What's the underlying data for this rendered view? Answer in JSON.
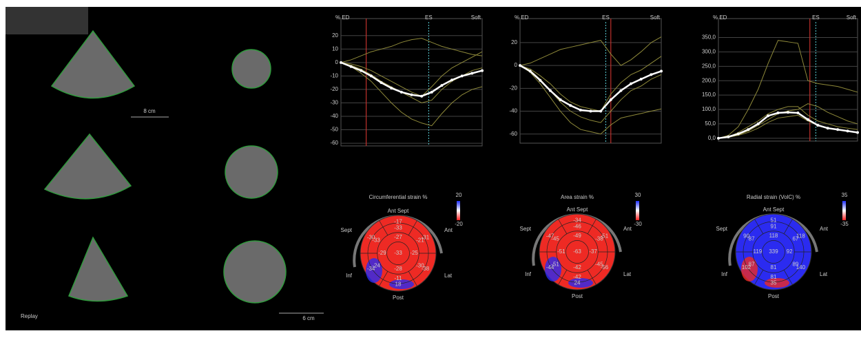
{
  "echo": {
    "scale_top": "8 cm",
    "scale_bottom": "6 cm",
    "replay": "Replay"
  },
  "chart_data": [
    {
      "type": "line",
      "y_label": "% ED",
      "marker_label": "ES",
      "mode_label": "Soft",
      "xlim": [
        0,
        14
      ],
      "x": [
        0,
        1,
        2,
        3,
        4,
        5,
        6,
        7,
        8,
        9,
        10,
        11,
        12,
        13,
        14
      ],
      "ylim": [
        -62,
        25
      ],
      "yticks": [
        20,
        10,
        0,
        -10,
        -20,
        -30,
        -40,
        -50,
        -60
      ],
      "ed_x": 2.5,
      "es_x": 8.7,
      "series": [
        {
          "color": "#8f8a3a",
          "values": [
            0,
            -2,
            -5,
            -9,
            -14,
            -18,
            -22,
            -26,
            -30,
            -28,
            -20,
            -14,
            -10,
            -6,
            -4
          ]
        },
        {
          "color": "#8f8a3a",
          "values": [
            0,
            -1,
            -3,
            -6,
            -10,
            -14,
            -18,
            -22,
            -25,
            -18,
            -10,
            -4,
            0,
            4,
            8
          ]
        },
        {
          "color": "#8f8a3a",
          "values": [
            0,
            -3,
            -8,
            -14,
            -22,
            -30,
            -37,
            -42,
            -45,
            -47,
            -38,
            -30,
            -24,
            -20,
            -18
          ]
        },
        {
          "color": "#8f8a3a",
          "values": [
            0,
            2,
            5,
            8,
            10,
            12,
            15,
            17,
            18,
            15,
            12,
            10,
            8,
            6,
            5
          ]
        },
        {
          "color": "#ffffff",
          "values": [
            0,
            -3,
            -6,
            -10,
            -15,
            -19,
            -22,
            -24,
            -25,
            -22,
            -17,
            -13,
            -10,
            -8,
            -6
          ]
        }
      ]
    },
    {
      "type": "line",
      "y_label": "% ED",
      "marker_label": "ES",
      "mode_label": "Soft",
      "xlim": [
        0,
        14
      ],
      "x": [
        0,
        1,
        2,
        3,
        4,
        5,
        6,
        7,
        8,
        9,
        10,
        11,
        12,
        13,
        14
      ],
      "ylim": [
        -68,
        32
      ],
      "yticks": [
        20,
        0,
        -20,
        -40,
        -60
      ],
      "ed_x": 9,
      "es_x": 8.5,
      "series": [
        {
          "color": "#8f8a3a",
          "values": [
            0,
            -4,
            -12,
            -22,
            -32,
            -40,
            -45,
            -48,
            -50,
            -40,
            -30,
            -22,
            -18,
            -12,
            -8
          ]
        },
        {
          "color": "#8f8a3a",
          "values": [
            0,
            2,
            6,
            10,
            14,
            16,
            18,
            20,
            22,
            10,
            0,
            5,
            12,
            20,
            25
          ]
        },
        {
          "color": "#8f8a3a",
          "values": [
            0,
            -6,
            -16,
            -28,
            -40,
            -50,
            -56,
            -58,
            -60,
            -52,
            -46,
            -44,
            -42,
            -40,
            -38
          ]
        },
        {
          "color": "#8f8a3a",
          "values": [
            0,
            -3,
            -9,
            -16,
            -25,
            -32,
            -36,
            -38,
            -40,
            -25,
            -15,
            -8,
            -4,
            2,
            8
          ]
        },
        {
          "color": "#ffffff",
          "values": [
            0,
            -5,
            -13,
            -22,
            -30,
            -35,
            -39,
            -40,
            -40,
            -30,
            -22,
            -16,
            -12,
            -8,
            -5
          ]
        }
      ]
    },
    {
      "type": "line",
      "y_label": "% ED",
      "marker_label": "ES",
      "mode_label": "Soft",
      "xlim": [
        0,
        14
      ],
      "x": [
        0,
        1,
        2,
        3,
        4,
        5,
        6,
        7,
        8,
        9,
        10,
        11,
        12,
        13,
        14
      ],
      "ylim": [
        -10,
        380
      ],
      "yticks": [
        {
          "value": 0,
          "label": "0,0"
        },
        {
          "value": 50,
          "label": "50,0"
        },
        {
          "value": 100,
          "label": "100,0"
        },
        {
          "value": 150,
          "label": "150,0"
        },
        {
          "value": 200,
          "label": "200,0"
        },
        {
          "value": 250,
          "label": "250,0"
        },
        {
          "value": 300,
          "label": "300,0"
        },
        {
          "value": 350,
          "label": "350,0"
        }
      ],
      "ed_x": 9.2,
      "es_x": 9.8,
      "series": [
        {
          "color": "#8f8a3a",
          "values": [
            0,
            10,
            40,
            100,
            170,
            260,
            340,
            335,
            330,
            200,
            190,
            185,
            180,
            170,
            160
          ]
        },
        {
          "color": "#8f8a3a",
          "values": [
            0,
            5,
            20,
            40,
            60,
            85,
            100,
            110,
            110,
            80,
            60,
            50,
            40,
            35,
            30
          ]
        },
        {
          "color": "#8f8a3a",
          "values": [
            0,
            3,
            10,
            20,
            35,
            55,
            70,
            75,
            80,
            60,
            45,
            35,
            30,
            25,
            20
          ]
        },
        {
          "color": "#8f8a3a",
          "values": [
            0,
            4,
            12,
            25,
            45,
            65,
            85,
            95,
            100,
            120,
            110,
            90,
            75,
            60,
            50
          ]
        },
        {
          "color": "#ffffff",
          "values": [
            0,
            5,
            15,
            30,
            50,
            78,
            88,
            90,
            88,
            65,
            45,
            35,
            30,
            25,
            20
          ]
        }
      ]
    }
  ],
  "bullseyes": [
    {
      "title": "Circumferential strain %",
      "color": "#ee2a24",
      "scale_max": 20,
      "scale_min": -20,
      "orientation": [
        "Ant Sept",
        "Ant",
        "Lat",
        "Post",
        "Inf",
        "Sept"
      ],
      "basal": [
        -17,
        -31,
        -38,
        18,
        -34,
        -30
      ],
      "mid": [
        -33,
        -21,
        -30,
        -11,
        -24,
        -33
      ],
      "apical": [
        -27,
        -25,
        -28,
        -29
      ],
      "apex": -33
    },
    {
      "title": "Area strain %",
      "color": "#ee2a24",
      "scale_max": 30,
      "scale_min": -30,
      "orientation": [
        "Ant Sept",
        "Ant",
        "Lat",
        "Post",
        "Inf",
        "Sept"
      ],
      "basal": [
        -34,
        -51,
        -56,
        24,
        -44,
        -47
      ],
      "mid": [
        -46,
        -38,
        -45,
        -42,
        -51,
        -45
      ],
      "apical": [
        -49,
        -37,
        -42,
        -51
      ],
      "apex": -63
    },
    {
      "title": "Radial strain (VolC) %",
      "color": "#2b2bf0",
      "scale_max": 35,
      "scale_min": -35,
      "orientation": [
        "Ant Sept",
        "Ant",
        "Lat",
        "Post",
        "Inf",
        "Sept"
      ],
      "basal": [
        51,
        118,
        140,
        35,
        102,
        90
      ],
      "mid": [
        91,
        67,
        89,
        81,
        87,
        87
      ],
      "apical": [
        118,
        92,
        81,
        119
      ],
      "apex": 339
    }
  ]
}
